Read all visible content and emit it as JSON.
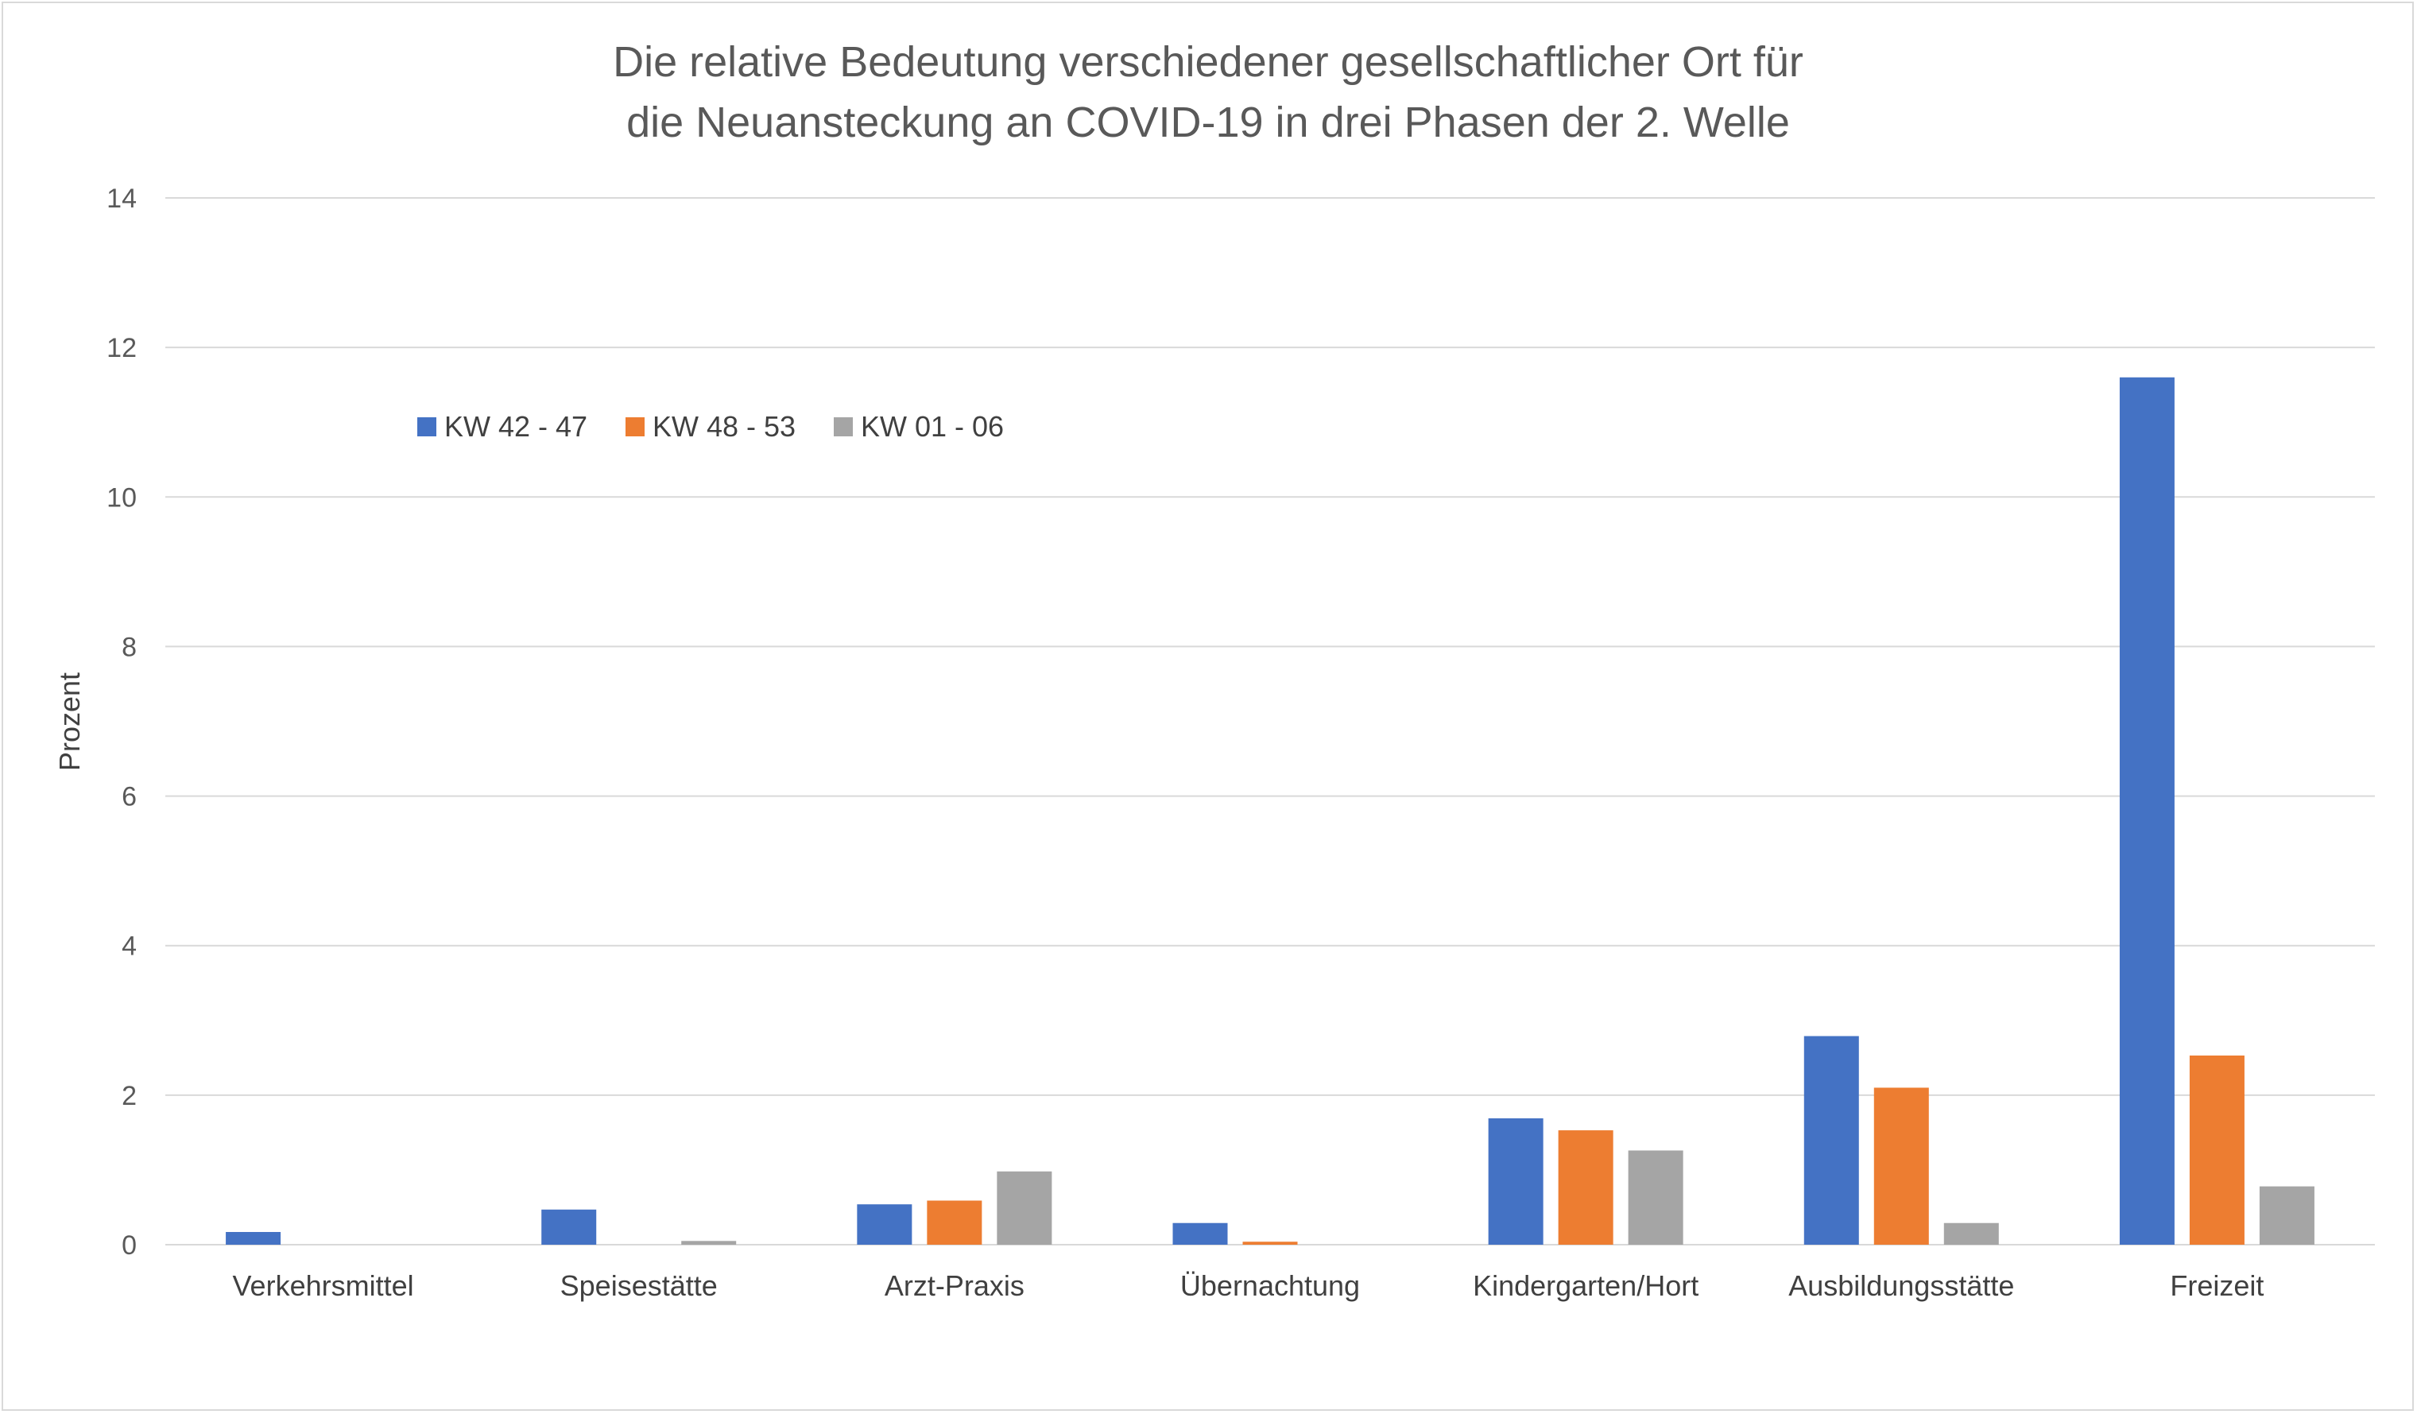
{
  "chart_data": {
    "type": "bar",
    "title_lines": [
      "Die relative Bedeutung verschiedener gesellschaftlicher Ort für",
      "die Neuansteckung an COVID-19 in drei Phasen der 2. Welle"
    ],
    "xlabel": "",
    "ylabel": "Prozent",
    "ylim": [
      0,
      14
    ],
    "yticks": [
      0,
      2,
      4,
      6,
      8,
      10,
      12,
      14
    ],
    "grid": true,
    "legend_position": "top-left",
    "categories": [
      "Verkehrsmittel",
      "Speisestätte",
      "Arzt-Praxis",
      "Übernachtung",
      "Kindergarten/Hort",
      "Ausbildungsstätte",
      "Freizeit"
    ],
    "series": [
      {
        "name": "KW 42 - 47",
        "color": "#4472c4",
        "values": [
          0.17,
          0.47,
          0.54,
          0.29,
          1.69,
          2.79,
          11.6
        ]
      },
      {
        "name": "KW 48 - 53",
        "color": "#ed7d31",
        "values": [
          0.0,
          0.0,
          0.59,
          0.04,
          1.53,
          2.1,
          2.53
        ]
      },
      {
        "name": "KW 01 - 06",
        "color": "#a5a5a5",
        "values": [
          0.0,
          0.05,
          0.98,
          0.0,
          1.26,
          0.29,
          0.78
        ]
      }
    ],
    "colors": {
      "grid": "#d9d9d9",
      "text": "#595959"
    }
  }
}
